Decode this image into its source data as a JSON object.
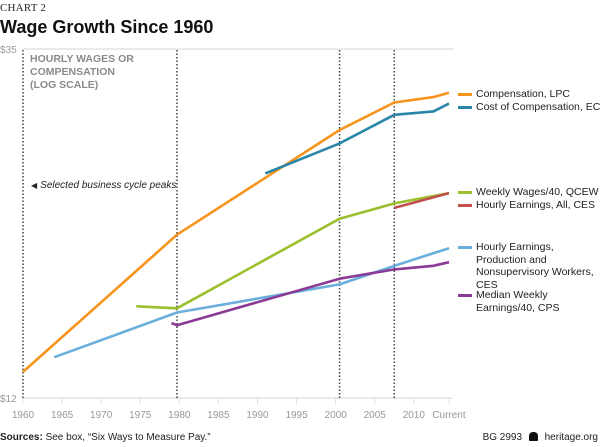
{
  "chart_label": "CHART 2",
  "title": "Wage Growth Since 1960",
  "footer": {
    "sources_label": "Sources:",
    "sources_text": "See box, “Six Ways to Measure Pay.”",
    "report_id": "BG 2993",
    "logo_icon": "liberty-bell-icon",
    "site": "heritage.org"
  },
  "chart_data": {
    "type": "line",
    "title": "Wage Growth Since 1960",
    "ylabel": "HOURLY WAGES OR\nCOMPENSATION\n(LOG SCALE)",
    "xlabel": "",
    "yscale": "log",
    "ylim": [
      12,
      35
    ],
    "ytick_labels": [
      "$35",
      "$12"
    ],
    "yticks": [
      35,
      12
    ],
    "xlim": [
      1960,
      2014.5
    ],
    "xticks": [
      1960,
      1965,
      1970,
      1975,
      1980,
      1985,
      1990,
      1995,
      2000,
      2005,
      2010,
      2014.5
    ],
    "xtick_labels": [
      "1960",
      "1965",
      "1970",
      "1975",
      "1980",
      "1985",
      "1990",
      "1995",
      "2000",
      "2005",
      "2010",
      "Current"
    ],
    "grid": false,
    "legend_placement": "right",
    "annotation": "Selected business cycle peaks",
    "cycle_peaks": [
      1960,
      1979.7,
      2000.5,
      2007.5
    ],
    "series": [
      {
        "name": "Compensation, LPC",
        "color": "#f7941d",
        "x": [
          1960,
          1979.7,
          2000.5,
          2007.5,
          2012.5,
          2014.5
        ],
        "values": [
          13.0,
          19.8,
          27.3,
          29.7,
          30.2,
          30.6
        ]
      },
      {
        "name": "Cost of Compensation, ECT",
        "color": "#2a86a8",
        "x": [
          1991,
          2000.5,
          2007.5,
          2012.5,
          2014.5
        ],
        "values": [
          23.9,
          26.2,
          28.6,
          28.9,
          29.6
        ]
      },
      {
        "name": "Weekly Wages/40, QCEW",
        "color": "#9bbf2e",
        "x": [
          1974.5,
          1979.7,
          2000.5,
          2007.5,
          2014.5
        ],
        "values": [
          15.9,
          15.8,
          20.8,
          21.8,
          22.5
        ]
      },
      {
        "name": "Hourly Earnings, All, CES",
        "color": "#c1504d",
        "x": [
          2007.5,
          2014.5
        ],
        "values": [
          21.5,
          22.5
        ]
      },
      {
        "name": "Hourly Earnings, Production and Nonsupervisory Workers, CES",
        "color": "#6aaedc",
        "x": [
          1964,
          1979.7,
          2000.5,
          2007.5,
          2014.5
        ],
        "values": [
          13.6,
          15.6,
          17.0,
          18.0,
          19.0
        ]
      },
      {
        "name": "Median Weekly Earnings/40, CPS",
        "color": "#8b3a96",
        "x": [
          1979,
          1979.7,
          2000.5,
          2007.5,
          2012.5,
          2014.5
        ],
        "values": [
          15.1,
          15.0,
          17.3,
          17.8,
          18.0,
          18.2
        ]
      }
    ]
  },
  "legend": [
    {
      "label": "Compensation, LPC",
      "color": "#f7941d"
    },
    {
      "label": "Cost of Compensation, ECT",
      "color": "#2a86a8"
    },
    {
      "label": "Weekly Wages/40, QCEW",
      "color": "#9bbf2e"
    },
    {
      "label": "Hourly Earnings, All, CES",
      "color": "#c1504d"
    },
    {
      "label": "Hourly Earnings, Production and Nonsupervisory Workers, CES",
      "color": "#6aaedc"
    },
    {
      "label": "Median Weekly Earnings/40, CPS",
      "color": "#8b3a96"
    }
  ]
}
